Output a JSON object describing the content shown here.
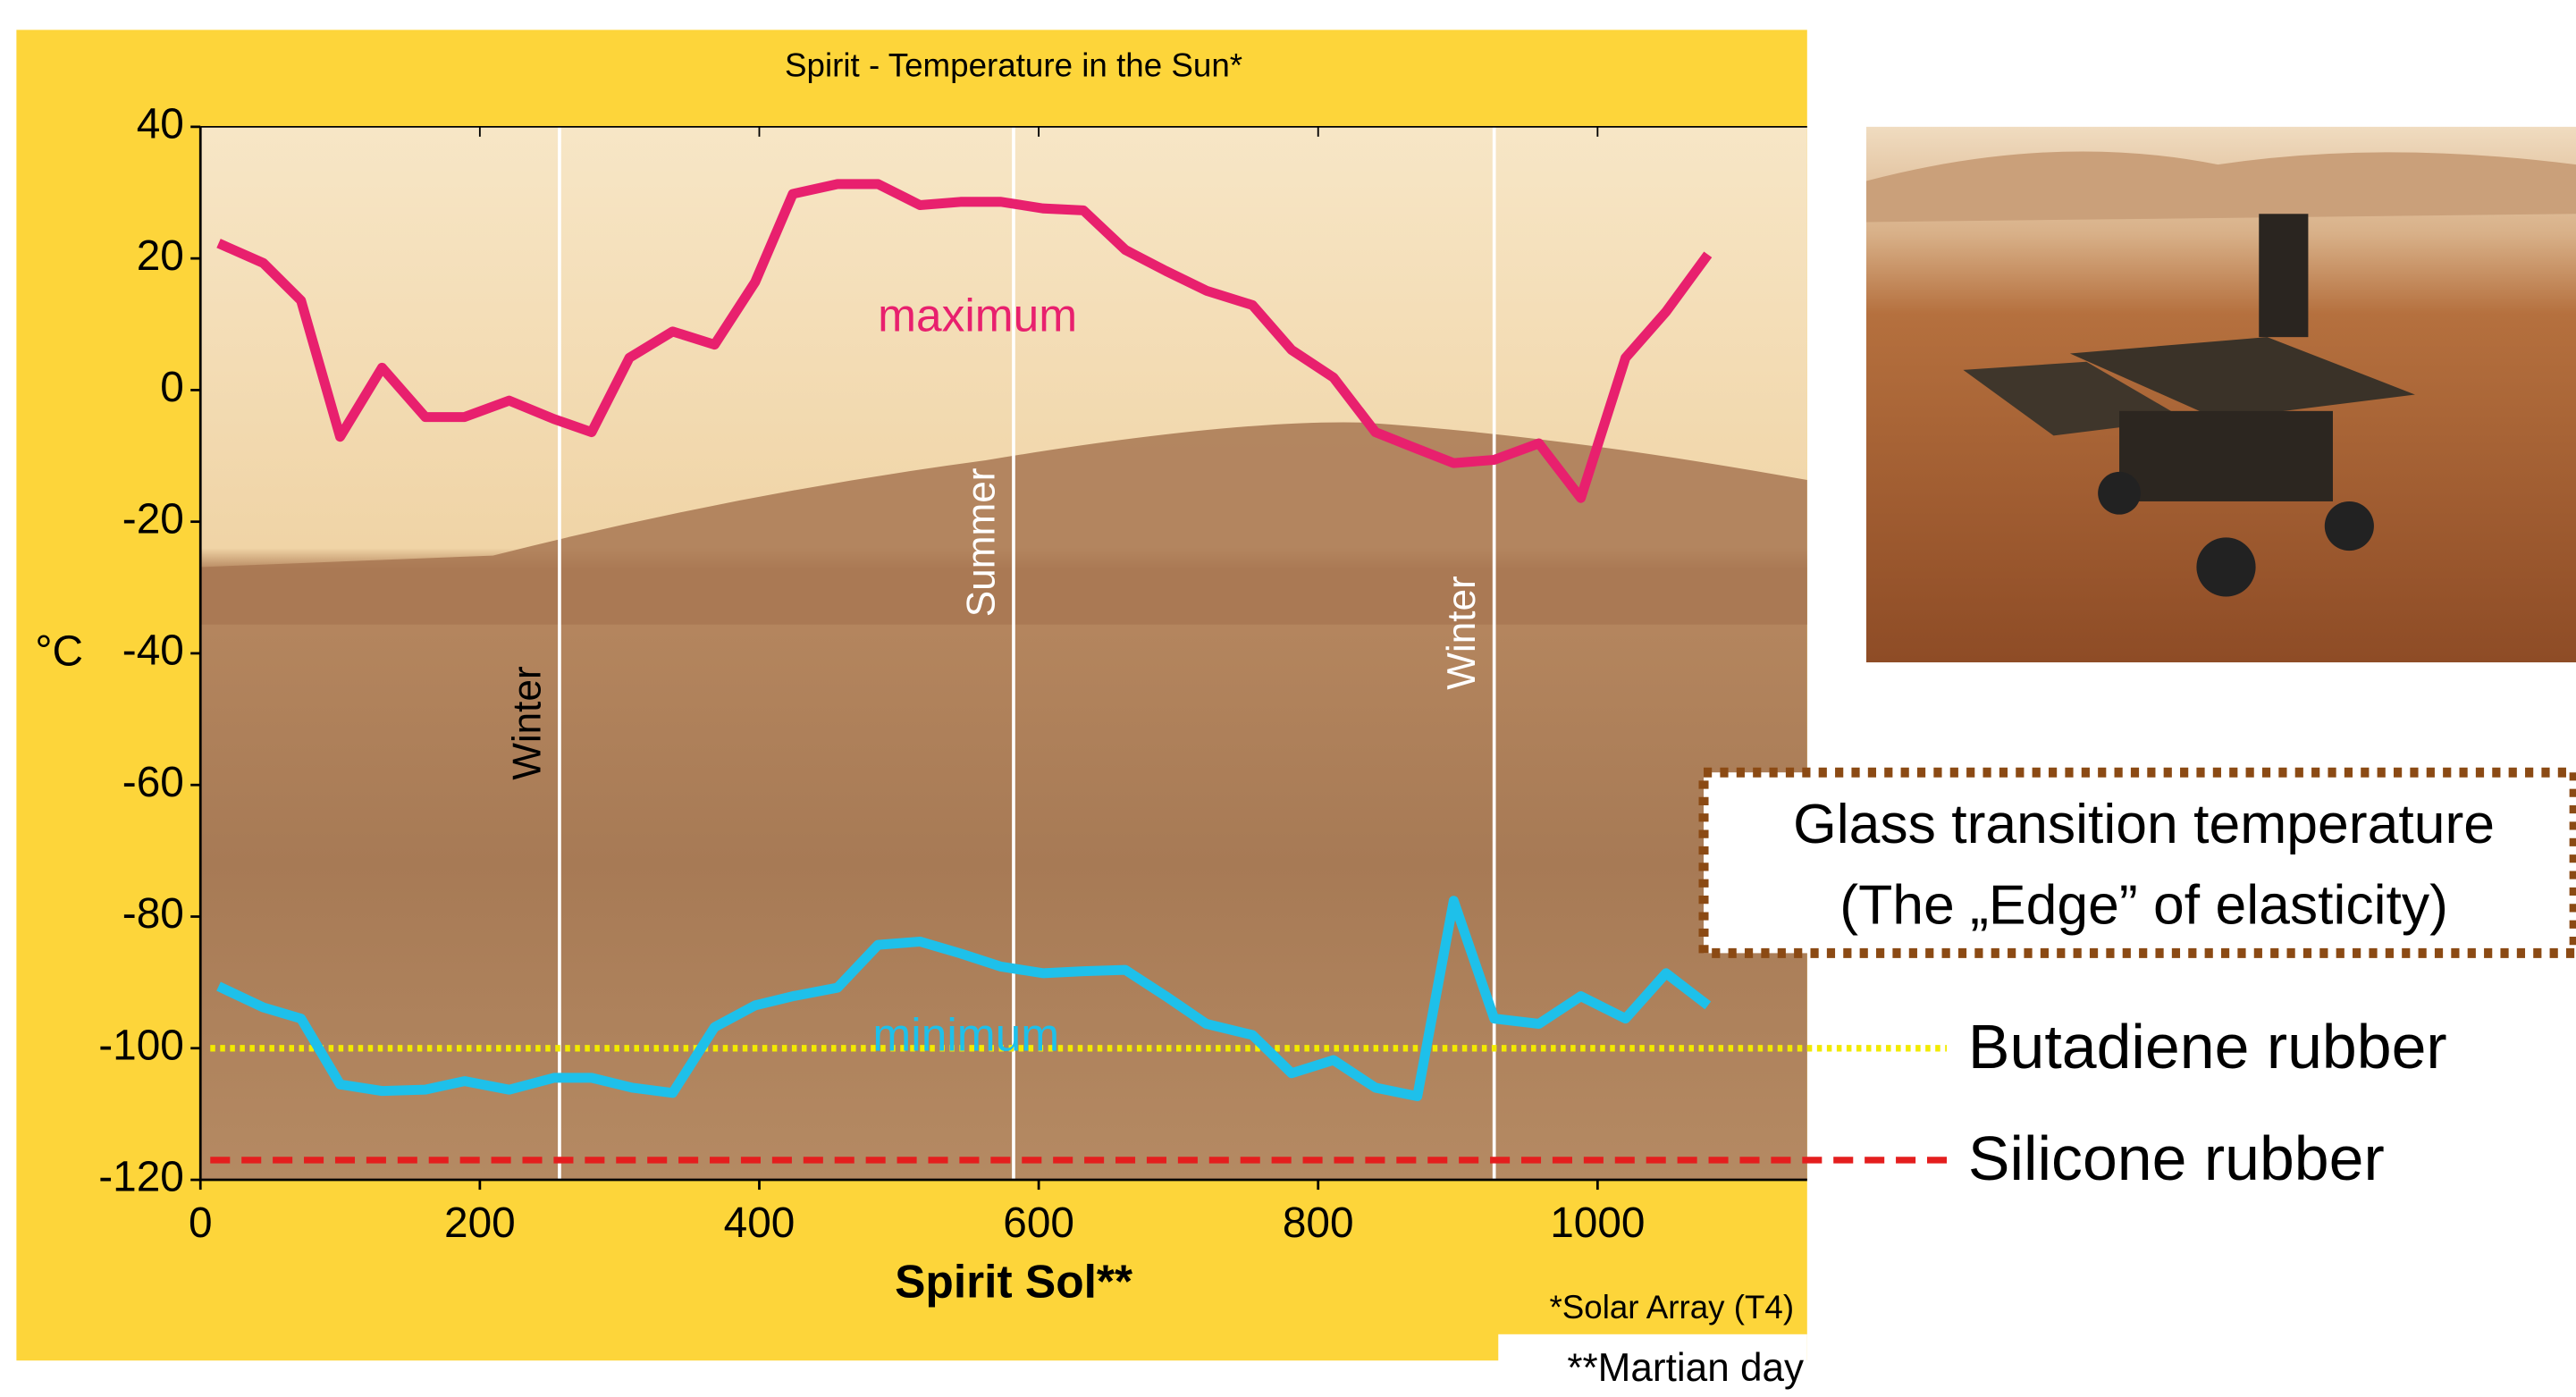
{
  "chart_data": {
    "type": "line",
    "title": "Spirit - Temperature in the Sun*",
    "x_label": "Spirit Sol**",
    "y_label": "°C",
    "footnote": "*Solar Array (T4)",
    "note": "**Martian day",
    "xlim": [
      0,
      1150
    ],
    "xticks": [
      0,
      200,
      400,
      600,
      800,
      1000
    ],
    "ylim": [
      -120,
      40
    ],
    "yticks": [
      -120,
      -100,
      -80,
      -60,
      -40,
      -20,
      0,
      20,
      40
    ],
    "series": [
      {
        "name": "maximum",
        "color": "#e8206e",
        "x": [
          13,
          45,
          72,
          100,
          130,
          161,
          189,
          221,
          253,
          280,
          307,
          338,
          368,
          397,
          424,
          456,
          485,
          515,
          544,
          573,
          603,
          632,
          662,
          691,
          720,
          753,
          781,
          811,
          841,
          867,
          897,
          926,
          958,
          988,
          1020,
          1049,
          1079
        ],
        "values": [
          22.3,
          19.3,
          13.6,
          -7.1,
          3.4,
          -4.1,
          -4.1,
          -1.6,
          -4.4,
          -6.4,
          4.9,
          8.9,
          6.9,
          16.4,
          29.8,
          31.3,
          31.3,
          28.1,
          28.6,
          28.6,
          27.6,
          27.3,
          21.3,
          18.1,
          15.1,
          12.9,
          6.1,
          1.9,
          -6.4,
          -8.6,
          -11.1,
          -10.6,
          -8.1,
          -16.4,
          4.9,
          11.9,
          20.6
        ]
      },
      {
        "name": "minimum",
        "color": "#1ec0ea",
        "x": [
          13,
          45,
          72,
          100,
          130,
          161,
          189,
          221,
          253,
          280,
          309,
          338,
          368,
          397,
          424,
          456,
          485,
          515,
          544,
          573,
          603,
          632,
          662,
          691,
          720,
          753,
          781,
          811,
          841,
          871,
          897,
          926,
          958,
          988,
          1020,
          1049,
          1079
        ],
        "values": [
          -90.6,
          -93.8,
          -95.5,
          -105.5,
          -106.5,
          -106.3,
          -105.0,
          -106.3,
          -104.5,
          -104.5,
          -106.0,
          -106.8,
          -96.8,
          -93.5,
          -92.1,
          -90.8,
          -84.3,
          -83.8,
          -85.6,
          -87.6,
          -88.6,
          -88.3,
          -88.1,
          -92.1,
          -96.3,
          -98.0,
          -103.8,
          -101.8,
          -106.0,
          -107.3,
          -77.6,
          -95.5,
          -96.3,
          -92.1,
          -95.5,
          -88.6,
          -93.5
        ]
      }
    ],
    "reference_lines": [
      {
        "name": "Butadiene rubber",
        "value": -100,
        "color": "#f2ea00",
        "style": "dotted"
      },
      {
        "name": "Silicone rubber",
        "value": -117,
        "color": "#e41e1e",
        "style": "dashed"
      }
    ],
    "seasons": [
      {
        "label": "Winter",
        "x": 257
      },
      {
        "label": "Summer",
        "x": 582
      },
      {
        "label": "Winter",
        "x": 926
      }
    ],
    "callout": [
      "Glass transition temperature",
      "(The „Edge” of elasticity)"
    ]
  }
}
